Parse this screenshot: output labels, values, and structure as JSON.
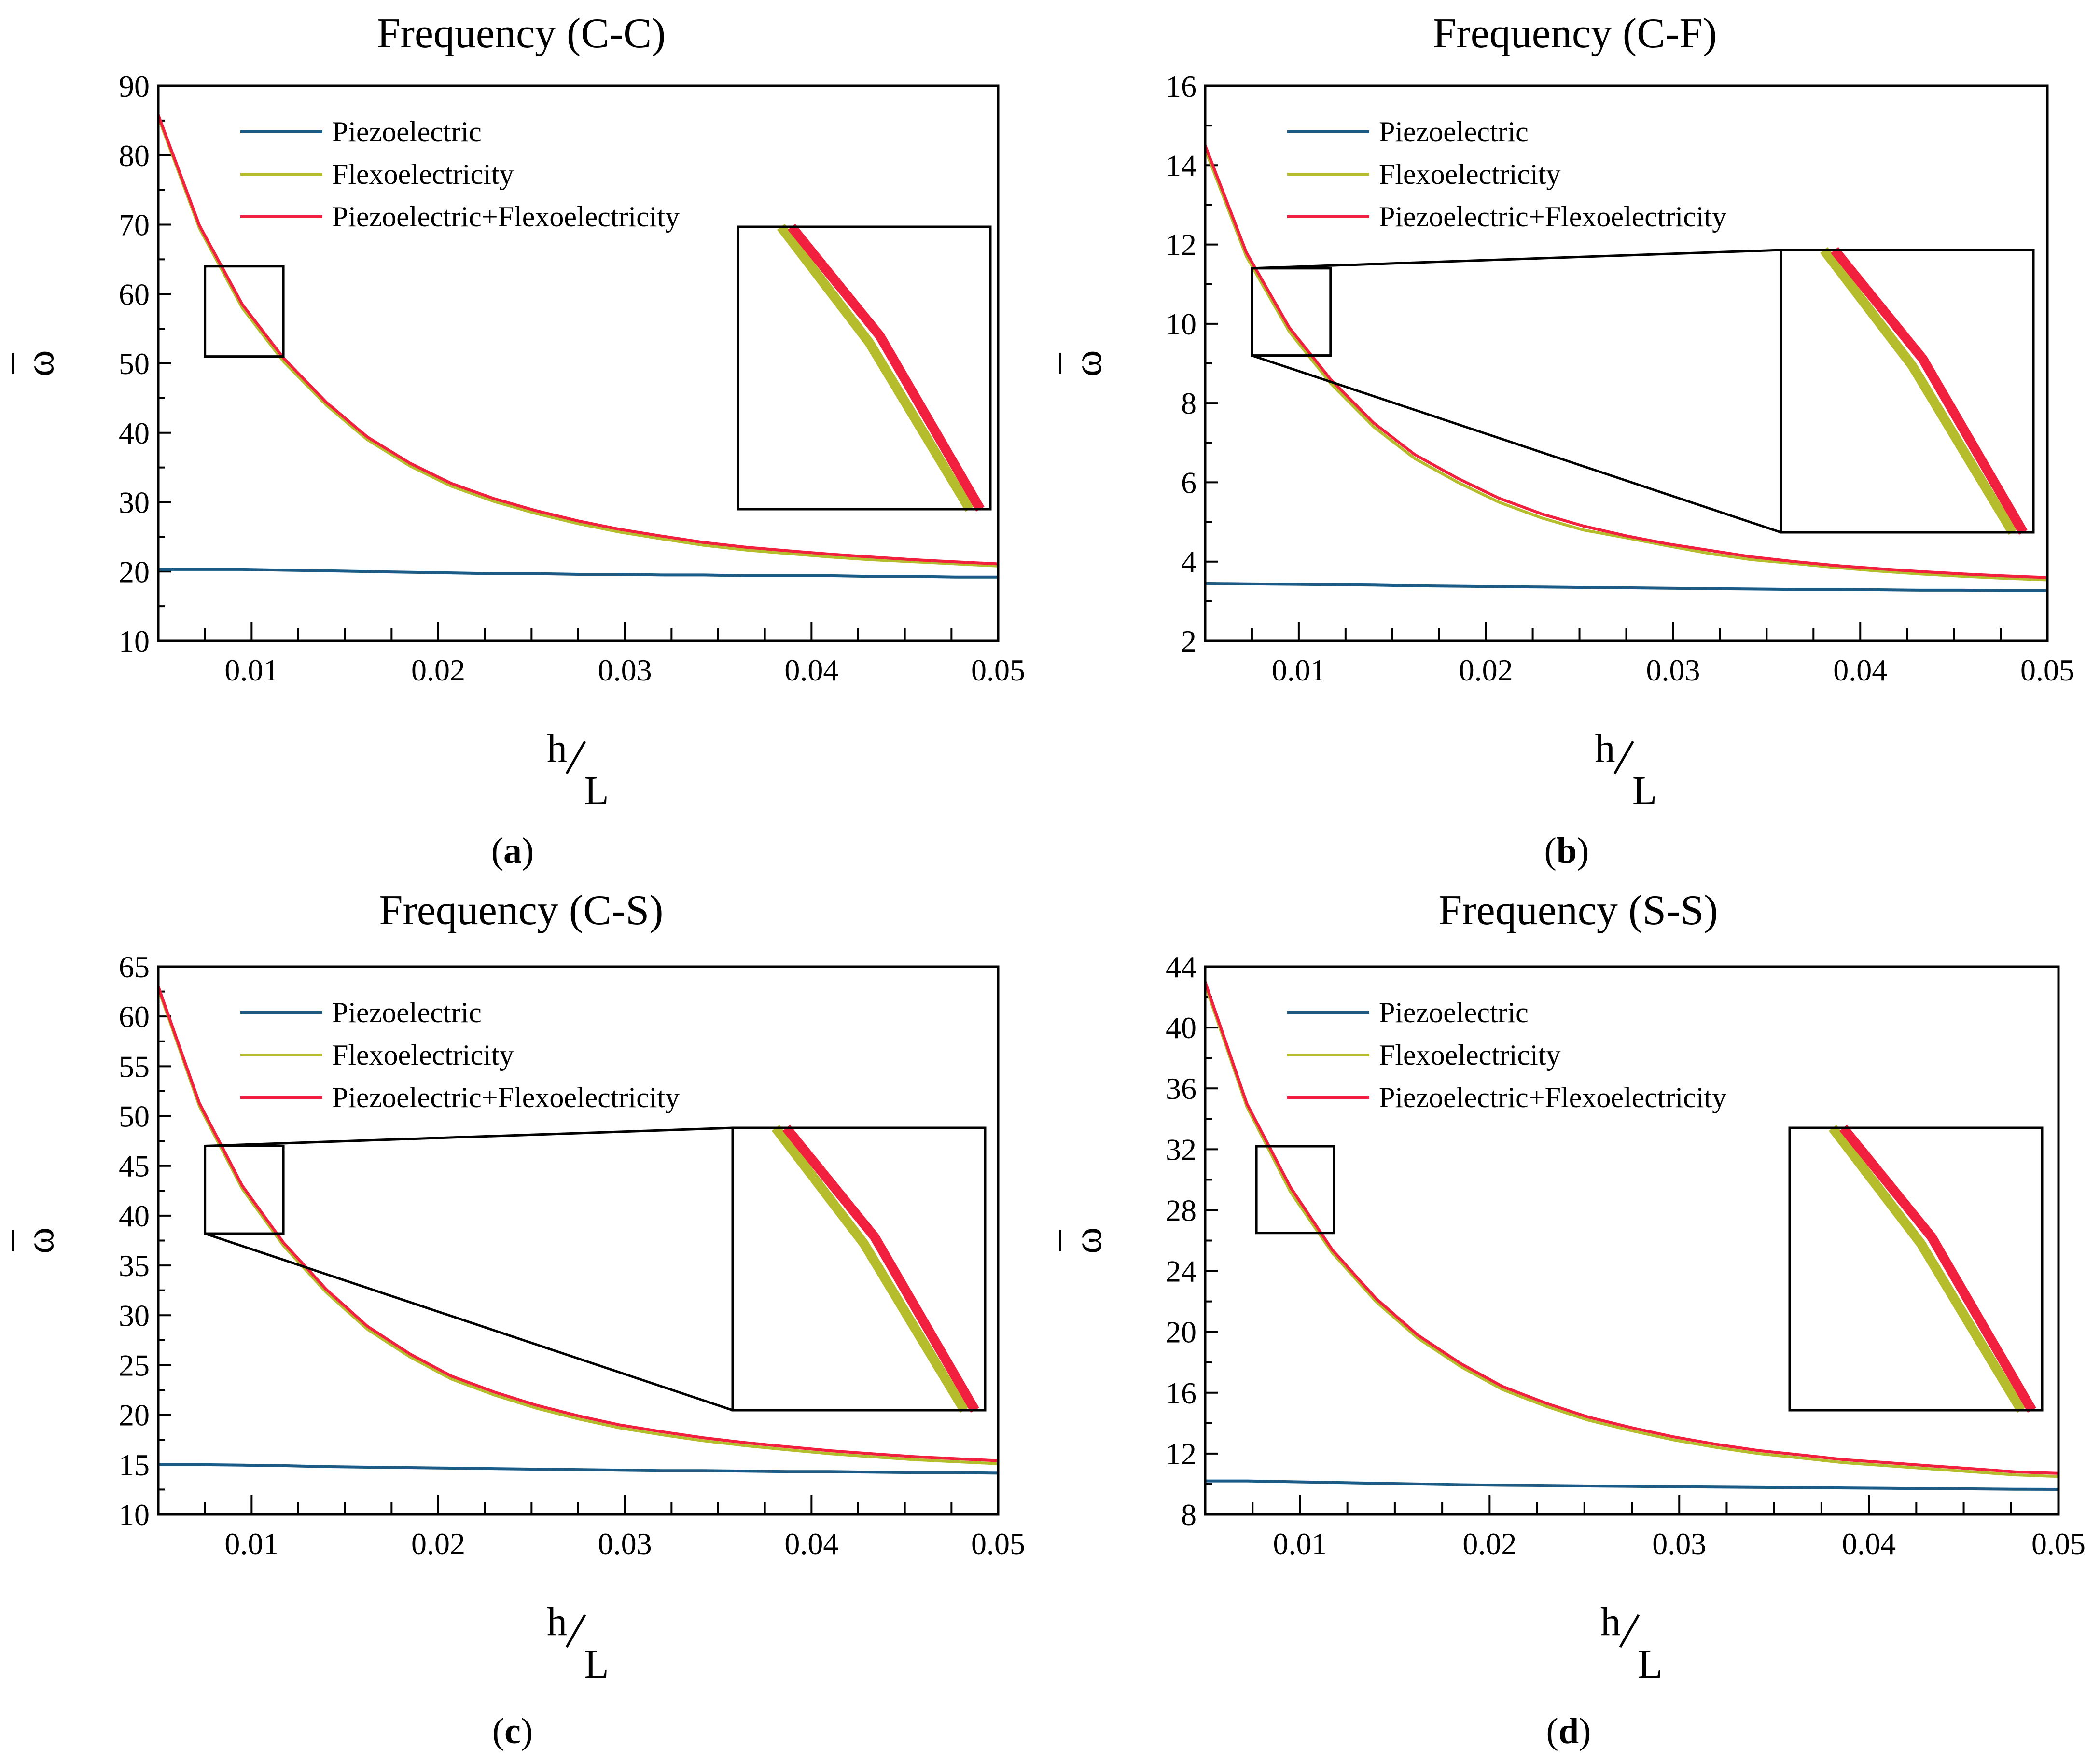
{
  "colors": {
    "piezoelectric": "#1b5b86",
    "flexoelectricity": "#b5bd2d",
    "combined": "#f2203f"
  },
  "legend": [
    "Piezoelectric",
    "Flexoelectricity",
    "Piezoelectric+Flexoelectricity"
  ],
  "chart_data": [
    {
      "type": "line",
      "id": "a",
      "title": "Frequency (C-C)",
      "caption_letter": "a",
      "xlabel_h": "h",
      "xlabel_l": "L",
      "ylabel": "ω",
      "xlim": [
        0.005,
        0.05
      ],
      "ylim": [
        10,
        90
      ],
      "xticks": [
        0.01,
        0.02,
        0.03,
        0.04,
        0.05
      ],
      "xtick_labels": [
        "0.01",
        "0.02",
        "0.03",
        "0.04",
        "0.05"
      ],
      "yticks": [
        10,
        20,
        30,
        40,
        50,
        60,
        70,
        80,
        90
      ],
      "ytick_labels": [
        "10",
        "20",
        "30",
        "40",
        "50",
        "60",
        "70",
        "80",
        "90"
      ],
      "x": [
        0.005,
        0.0072,
        0.0095,
        0.0117,
        0.014,
        0.0162,
        0.0185,
        0.0207,
        0.023,
        0.0252,
        0.0275,
        0.0297,
        0.032,
        0.0342,
        0.0365,
        0.0387,
        0.041,
        0.0432,
        0.0455,
        0.0477,
        0.05
      ],
      "series": [
        {
          "name": "Piezoelectric",
          "values": [
            20.3,
            20.3,
            20.3,
            20.2,
            20.1,
            20.0,
            19.9,
            19.8,
            19.7,
            19.7,
            19.6,
            19.6,
            19.5,
            19.5,
            19.4,
            19.4,
            19.4,
            19.3,
            19.3,
            19.2,
            19.2
          ]
        },
        {
          "name": "Flexoelectricity",
          "values": [
            85.5,
            69.5,
            58.0,
            50.3,
            44.0,
            39.0,
            35.2,
            32.3,
            30.1,
            28.4,
            26.9,
            25.7,
            24.7,
            23.8,
            23.1,
            22.6,
            22.1,
            21.7,
            21.4,
            21.1,
            20.8
          ]
        },
        {
          "name": "Piezoelectric+Flexoelectricity",
          "values": [
            85.8,
            69.9,
            58.5,
            50.8,
            44.4,
            39.4,
            35.6,
            32.7,
            30.5,
            28.8,
            27.3,
            26.1,
            25.1,
            24.2,
            23.5,
            23.0,
            22.5,
            22.1,
            21.7,
            21.4,
            21.1
          ]
        }
      ],
      "inset_region": {
        "x": [
          0.0075,
          0.0117
        ],
        "y": [
          51,
          64
        ]
      }
    },
    {
      "type": "line",
      "id": "b",
      "title": "Frequency (C-F)",
      "caption_letter": "b",
      "xlabel_h": "h",
      "xlabel_l": "L",
      "ylabel": "ω",
      "xlim": [
        0.005,
        0.05
      ],
      "ylim": [
        2,
        16
      ],
      "xticks": [
        0.01,
        0.02,
        0.03,
        0.04,
        0.05
      ],
      "xtick_labels": [
        "0.01",
        "0.02",
        "0.03",
        "0.04",
        "0.05"
      ],
      "yticks": [
        2,
        4,
        6,
        8,
        10,
        12,
        14,
        16
      ],
      "ytick_labels": [
        "2",
        "4",
        "6",
        "8",
        "10",
        "12",
        "14",
        "16"
      ],
      "x": [
        0.005,
        0.0072,
        0.0095,
        0.0117,
        0.014,
        0.0162,
        0.0185,
        0.0207,
        0.023,
        0.0252,
        0.0275,
        0.0297,
        0.032,
        0.0342,
        0.0365,
        0.0387,
        0.041,
        0.0432,
        0.0455,
        0.0477,
        0.05
      ],
      "series": [
        {
          "name": "Piezoelectric",
          "values": [
            3.45,
            3.44,
            3.43,
            3.42,
            3.41,
            3.39,
            3.38,
            3.37,
            3.36,
            3.35,
            3.34,
            3.33,
            3.32,
            3.31,
            3.3,
            3.3,
            3.29,
            3.28,
            3.28,
            3.27,
            3.27
          ]
        },
        {
          "name": "Flexoelectricity",
          "values": [
            14.4,
            11.7,
            9.8,
            8.5,
            7.4,
            6.6,
            6.0,
            5.5,
            5.1,
            4.8,
            4.6,
            4.4,
            4.2,
            4.05,
            3.95,
            3.85,
            3.76,
            3.69,
            3.63,
            3.58,
            3.54
          ]
        },
        {
          "name": "Piezoelectric+Flexoelectricity",
          "values": [
            14.5,
            11.8,
            9.9,
            8.6,
            7.5,
            6.7,
            6.1,
            5.6,
            5.2,
            4.9,
            4.65,
            4.45,
            4.28,
            4.12,
            4.0,
            3.9,
            3.82,
            3.75,
            3.69,
            3.64,
            3.6
          ]
        }
      ],
      "inset_region": {
        "x": [
          0.0075,
          0.0117
        ],
        "y": [
          9.2,
          11.4
        ]
      }
    },
    {
      "type": "line",
      "id": "c",
      "title": "Frequency (C-S)",
      "caption_letter": "c",
      "xlabel_h": "h",
      "xlabel_l": "L",
      "ylabel": "ω",
      "xlim": [
        0.005,
        0.05
      ],
      "ylim": [
        10,
        65
      ],
      "xticks": [
        0.01,
        0.02,
        0.03,
        0.04,
        0.05
      ],
      "xtick_labels": [
        "0.01",
        "0.02",
        "0.03",
        "0.04",
        "0.05"
      ],
      "yticks": [
        10,
        15,
        20,
        25,
        30,
        35,
        40,
        45,
        50,
        55,
        60,
        65
      ],
      "ytick_labels": [
        "10",
        "15",
        "20",
        "25",
        "30",
        "35",
        "40",
        "45",
        "50",
        "55",
        "60",
        "65"
      ],
      "x": [
        0.005,
        0.0072,
        0.0095,
        0.0117,
        0.014,
        0.0162,
        0.0185,
        0.0207,
        0.023,
        0.0252,
        0.0275,
        0.0297,
        0.032,
        0.0342,
        0.0365,
        0.0387,
        0.041,
        0.0432,
        0.0455,
        0.0477,
        0.05
      ],
      "series": [
        {
          "name": "Piezoelectric",
          "values": [
            15.0,
            15.0,
            14.95,
            14.9,
            14.8,
            14.75,
            14.7,
            14.65,
            14.6,
            14.55,
            14.5,
            14.45,
            14.4,
            14.4,
            14.35,
            14.3,
            14.3,
            14.25,
            14.2,
            14.2,
            14.15
          ]
        },
        {
          "name": "Flexoelectricity",
          "values": [
            62.8,
            51.0,
            42.7,
            37.0,
            32.3,
            28.6,
            25.8,
            23.6,
            22.0,
            20.7,
            19.6,
            18.7,
            18.0,
            17.4,
            16.9,
            16.5,
            16.1,
            15.8,
            15.5,
            15.3,
            15.1
          ]
        },
        {
          "name": "Piezoelectric+Flexoelectricity",
          "values": [
            63.0,
            51.3,
            43.0,
            37.3,
            32.6,
            28.9,
            26.1,
            23.9,
            22.3,
            21.0,
            19.9,
            19.0,
            18.3,
            17.7,
            17.2,
            16.8,
            16.4,
            16.1,
            15.8,
            15.6,
            15.4
          ]
        }
      ],
      "inset_region": {
        "x": [
          0.0075,
          0.0117
        ],
        "y": [
          38.2,
          47
        ]
      }
    },
    {
      "type": "line",
      "id": "d",
      "title": "Frequency (S-S)",
      "caption_letter": "d",
      "xlabel_h": "h",
      "xlabel_l": "L",
      "ylabel": "ω",
      "xlim": [
        0.005,
        0.05
      ],
      "ylim": [
        8,
        44
      ],
      "xticks": [
        0.01,
        0.02,
        0.03,
        0.04,
        0.05
      ],
      "xtick_labels": [
        "0.01",
        "0.02",
        "0.03",
        "0.04",
        "0.05"
      ],
      "yticks": [
        8,
        12,
        16,
        20,
        24,
        28,
        32,
        36,
        40,
        44
      ],
      "ytick_labels": [
        "8",
        "12",
        "16",
        "20",
        "24",
        "28",
        "32",
        "36",
        "40",
        "44"
      ],
      "x": [
        0.005,
        0.0072,
        0.0095,
        0.0117,
        0.014,
        0.0162,
        0.0185,
        0.0207,
        0.023,
        0.0252,
        0.0275,
        0.0297,
        0.032,
        0.0342,
        0.0365,
        0.0387,
        0.041,
        0.0432,
        0.0455,
        0.0477,
        0.05
      ],
      "series": [
        {
          "name": "Piezoelectric",
          "values": [
            10.2,
            10.2,
            10.15,
            10.1,
            10.05,
            10.0,
            9.95,
            9.92,
            9.9,
            9.87,
            9.85,
            9.82,
            9.8,
            9.78,
            9.76,
            9.74,
            9.72,
            9.7,
            9.68,
            9.66,
            9.65
          ]
        },
        {
          "name": "Flexoelectricity",
          "values": [
            42.8,
            34.8,
            29.2,
            25.2,
            22.0,
            19.6,
            17.7,
            16.2,
            15.1,
            14.2,
            13.5,
            12.9,
            12.4,
            12.0,
            11.7,
            11.4,
            11.2,
            11.0,
            10.8,
            10.6,
            10.5
          ]
        },
        {
          "name": "Piezoelectric+Flexoelectricity",
          "values": [
            43.0,
            35.0,
            29.5,
            25.4,
            22.2,
            19.8,
            17.9,
            16.4,
            15.3,
            14.4,
            13.7,
            13.1,
            12.6,
            12.2,
            11.9,
            11.6,
            11.4,
            11.2,
            11.0,
            10.8,
            10.7
          ]
        }
      ],
      "inset_region": {
        "x": [
          0.0077,
          0.0118
        ],
        "y": [
          26.5,
          32.2
        ]
      }
    }
  ]
}
